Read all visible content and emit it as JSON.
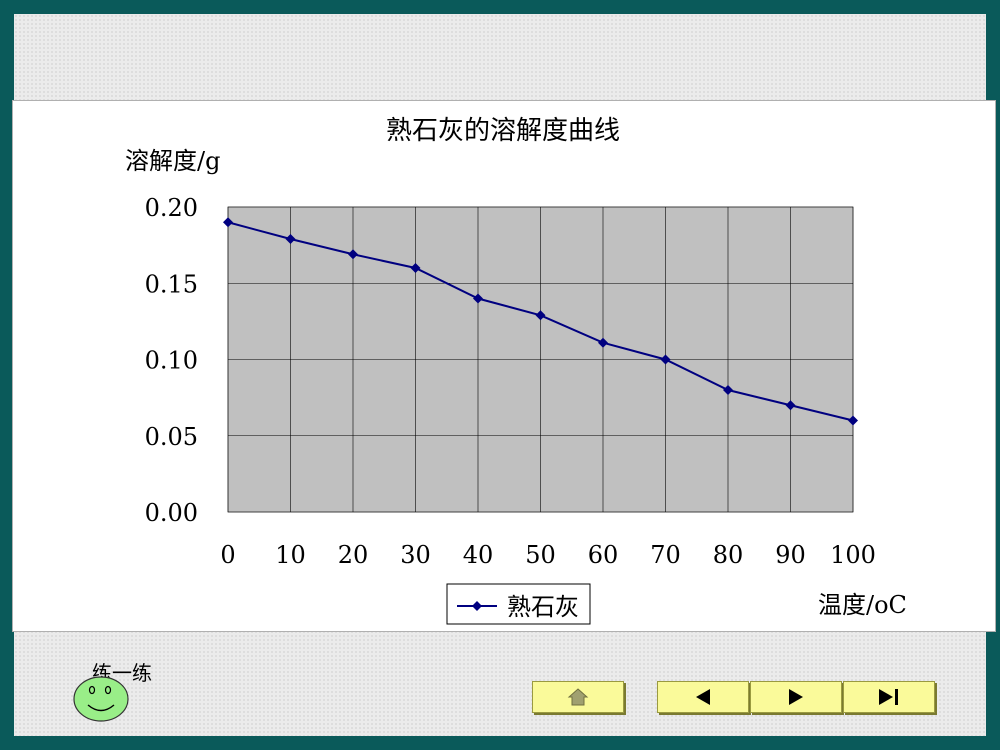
{
  "chart_data": {
    "type": "line",
    "title": "熟石灰的溶解度曲线",
    "ylabel": "溶解度/g",
    "xlabel": "温度/oC",
    "x": [
      0,
      10,
      20,
      30,
      40,
      50,
      60,
      70,
      80,
      90,
      100
    ],
    "x_tick_labels": [
      "0",
      "10",
      "20",
      "30",
      "40",
      "50",
      "60",
      "70",
      "80",
      "90",
      "100"
    ],
    "y_tick_labels": [
      "0.00",
      "0.05",
      "0.10",
      "0.15",
      "0.20"
    ],
    "y_ticks": [
      0,
      0.05,
      0.1,
      0.15,
      0.2
    ],
    "ylim": [
      0,
      0.2
    ],
    "xlim": [
      0,
      100
    ],
    "grid": true,
    "plot_background": "#c0c0c0",
    "legend_position": "bottom-center",
    "series": [
      {
        "name": "熟石灰",
        "color": "#000080",
        "marker": "diamond",
        "values": [
          0.19,
          0.179,
          0.169,
          0.16,
          0.14,
          0.129,
          0.111,
          0.1,
          0.08,
          0.07,
          0.06
        ]
      }
    ]
  },
  "footer": {
    "practice_label": "练一练",
    "smiley_icon": "smiley-face-icon"
  },
  "nav": {
    "home_icon": "home-icon",
    "prev_icon": "prev-arrow-icon",
    "next_icon": "next-arrow-icon",
    "end_icon": "last-page-icon",
    "button_color": "#fafa9a"
  }
}
